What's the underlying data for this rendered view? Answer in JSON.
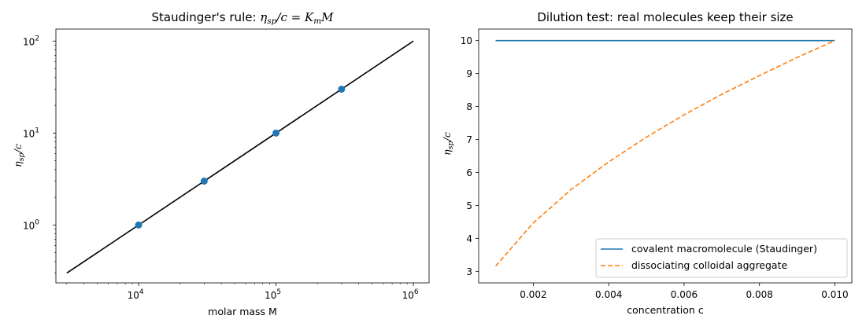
{
  "chart_data": [
    {
      "type": "line",
      "title": "Staudinger's rule: ηsp/c = KmM",
      "title_parts": {
        "prefix": "Staudinger's rule: ",
        "eta": "η",
        "sp": "sp",
        "rest": "/c = ",
        "K": "K",
        "m": "m",
        "M": "M"
      },
      "xlabel": "molar mass M",
      "ylabel_parts": {
        "eta": "η",
        "sp": "sp",
        "rest": "/c"
      },
      "xscale": "log",
      "yscale": "log",
      "xlim": [
        2500,
        1300000
      ],
      "ylim": [
        0.235,
        135
      ],
      "x_ticks": [
        {
          "base": "10",
          "exp": "4"
        },
        {
          "base": "10",
          "exp": "5"
        },
        {
          "base": "10",
          "exp": "6"
        }
      ],
      "y_ticks": [
        {
          "base": "10",
          "exp": "0"
        },
        {
          "base": "10",
          "exp": "1"
        },
        {
          "base": "10",
          "exp": "2"
        }
      ],
      "series": [
        {
          "kind": "line",
          "color": "#000000",
          "x": [
            3000,
            1000000
          ],
          "y": [
            0.3,
            100
          ]
        },
        {
          "kind": "scatter",
          "color": "#1f77b4",
          "x": [
            10000,
            30000,
            100000,
            300000
          ],
          "y": [
            1,
            3,
            10,
            30
          ]
        }
      ],
      "grid": false
    },
    {
      "type": "line",
      "title": "Dilution test: real molecules keep their size",
      "xlabel": "concentration c",
      "ylabel_parts": {
        "eta": "η",
        "sp": "sp",
        "rest": "/c"
      },
      "xlim": [
        0.00055,
        0.01045
      ],
      "ylim": [
        2.65,
        10.35
      ],
      "x_ticks": [
        "0.002",
        "0.004",
        "0.006",
        "0.008",
        "0.010"
      ],
      "y_ticks": [
        "3",
        "4",
        "5",
        "6",
        "7",
        "8",
        "9",
        "10"
      ],
      "legend_position": "lower right",
      "grid": false,
      "series": [
        {
          "name": "covalent macromolecule (Staudinger)",
          "color": "#1f77b4",
          "dash": "solid",
          "x": [
            0.001,
            0.002,
            0.003,
            0.004,
            0.005,
            0.006,
            0.007,
            0.008,
            0.009,
            0.01
          ],
          "y": [
            10,
            10,
            10,
            10,
            10,
            10,
            10,
            10,
            10,
            10
          ]
        },
        {
          "name": "dissociating colloidal aggregate",
          "color": "#ff7f0e",
          "dash": "dashed",
          "x": [
            0.001,
            0.002,
            0.003,
            0.004,
            0.005,
            0.006,
            0.007,
            0.008,
            0.009,
            0.01
          ],
          "y": [
            3.16,
            4.47,
            5.48,
            6.32,
            7.07,
            7.75,
            8.37,
            8.94,
            9.49,
            10.0
          ]
        }
      ]
    }
  ]
}
